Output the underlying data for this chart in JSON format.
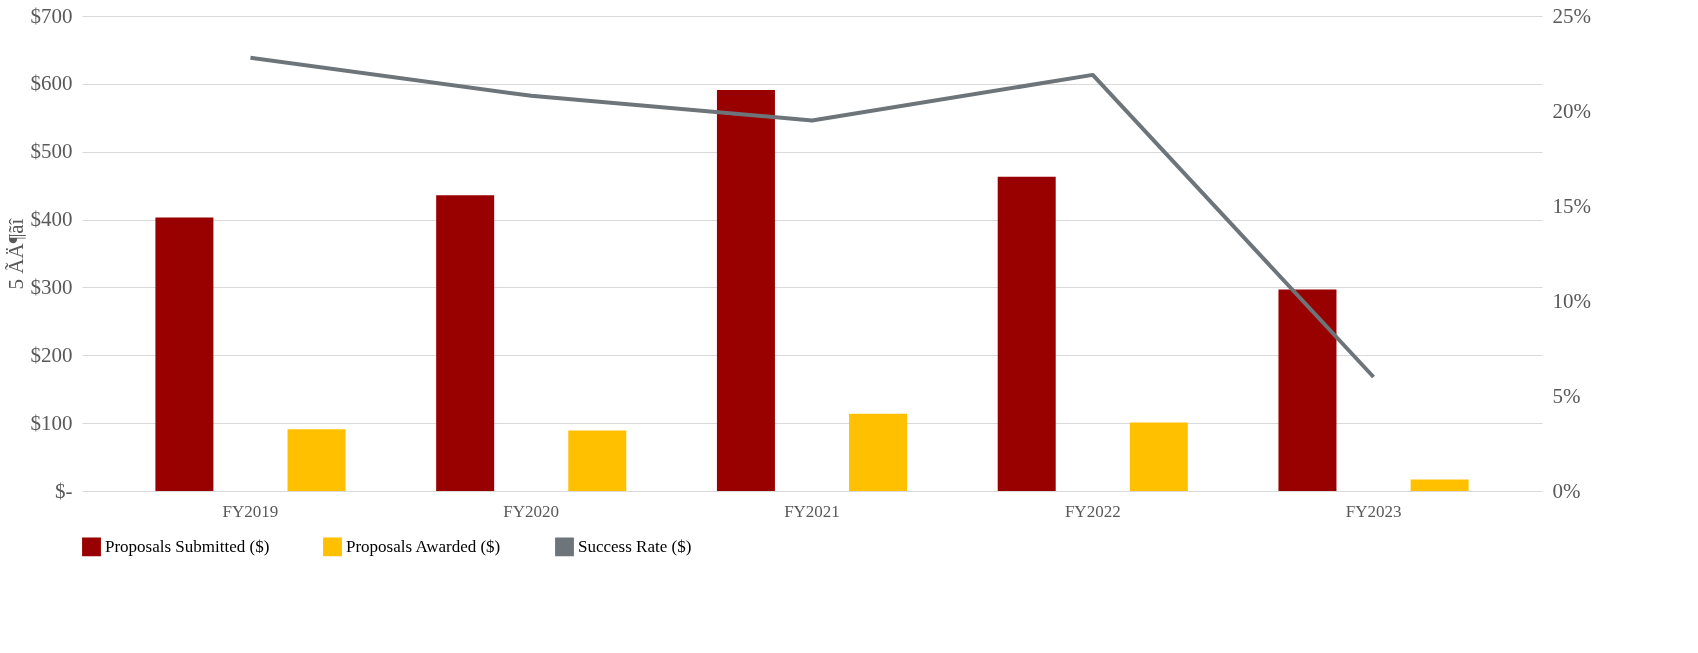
{
  "chart_data": {
    "type": "bar",
    "ylabel": "5 ÃÄ¶ãî",
    "categories": [
      "FY2019",
      "FY2020",
      "FY2021",
      "FY2022",
      "FY2023"
    ],
    "series": [
      {
        "name": "Proposals Submitted ($)",
        "color": "#990000",
        "values": [
          403,
          436,
          591,
          463,
          297
        ]
      },
      {
        "name": "Proposals Awarded ($)",
        "color": "#ffc000",
        "values": [
          91,
          89,
          114,
          101,
          17
        ]
      },
      {
        "name": "Success Rate ($)",
        "color": "#6d747a",
        "type": "line",
        "axis": "y2",
        "values": [
          22.8,
          20.8,
          19.5,
          21.9,
          6.0
        ]
      }
    ],
    "ylim": [
      0,
      700
    ],
    "yticks": [
      {
        "value": 0,
        "label": "$-"
      },
      {
        "value": 100,
        "label": "$100"
      },
      {
        "value": 200,
        "label": "$200"
      },
      {
        "value": 300,
        "label": "$300"
      },
      {
        "value": 400,
        "label": "$400"
      },
      {
        "value": 500,
        "label": "$500"
      },
      {
        "value": 600,
        "label": "$600"
      },
      {
        "value": 700,
        "label": "$700"
      }
    ],
    "y2lim": [
      0,
      25
    ],
    "y2ticks": [
      {
        "value": 0,
        "label": "0%"
      },
      {
        "value": 5,
        "label": "5%"
      },
      {
        "value": 10,
        "label": "10%"
      },
      {
        "value": 15,
        "label": "15%"
      },
      {
        "value": 20,
        "label": "20%"
      },
      {
        "value": 25,
        "label": "25%"
      }
    ],
    "grid": "y",
    "legend": "bottom"
  }
}
